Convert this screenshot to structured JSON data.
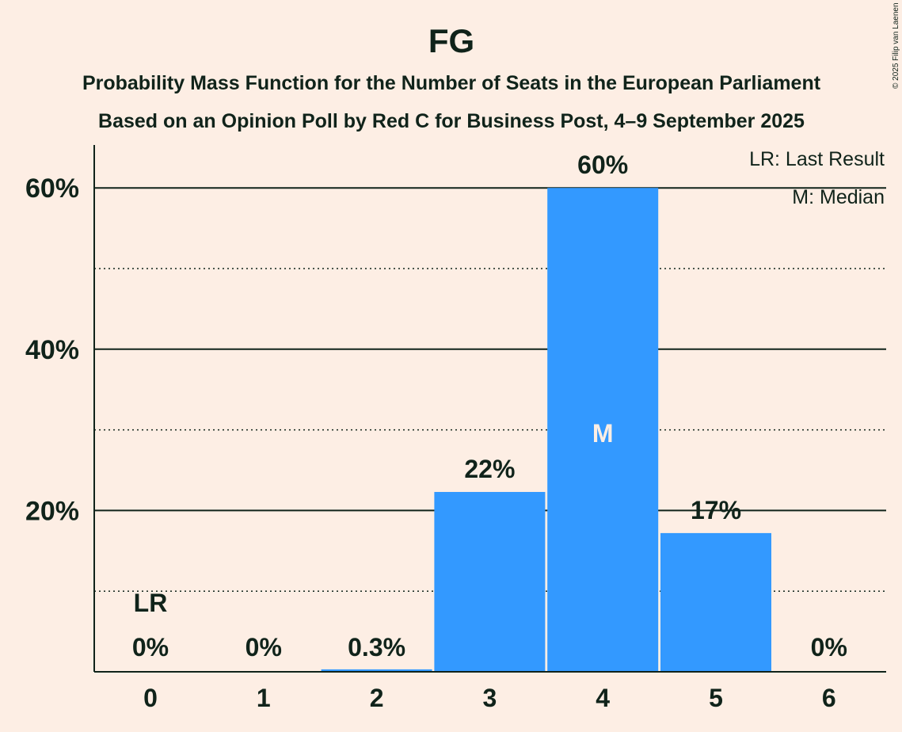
{
  "chart_data": {
    "type": "bar",
    "title": "FG",
    "subtitle1": "Probability Mass Function for the Number of Seats in the European Parliament",
    "subtitle2": "Based on an Opinion Poll by Red C for Business Post, 4–9 September 2025",
    "copyright": "© 2025 Filip van Laenen",
    "categories": [
      "0",
      "1",
      "2",
      "3",
      "4",
      "5",
      "6"
    ],
    "values": [
      0,
      0,
      0.3,
      22.3,
      60.0,
      17.2,
      0
    ],
    "data_labels": [
      "0%",
      "0%",
      "0.3%",
      "22%",
      "60%",
      "17%",
      "0%"
    ],
    "ylim": [
      0,
      65
    ],
    "yticks_major": [
      20,
      40,
      60
    ],
    "ytick_labels": [
      "20%",
      "40%",
      "60%"
    ],
    "yticks_minor": [
      10,
      30,
      50
    ],
    "bar_color": "#3399ff",
    "last_result_index": 0,
    "last_result_marker": "LR",
    "median_index": 4,
    "median_marker": "M",
    "legend": [
      "LR: Last Result",
      "M: Median"
    ],
    "legend_position": "top-right"
  }
}
